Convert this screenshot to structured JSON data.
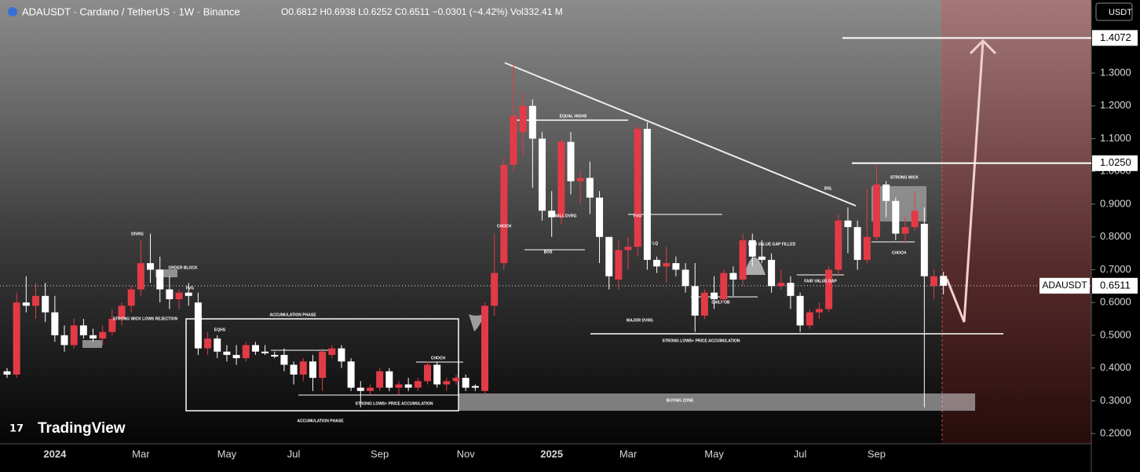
{
  "header": {
    "title": "ADAUSDT · Cardano / TetherUS · 1W · Binance",
    "ohlc": "O0.6812 H0.6938 L0.6252 C0.6511 −0.0301 (−4.42%) Vol332.41 M"
  },
  "branding": "TradingView",
  "chart_data": {
    "type": "candlestick",
    "categories": [
      null,
      null,
      null,
      null,
      null,
      "2024",
      null,
      null,
      null,
      null,
      null,
      null,
      null,
      null,
      "Mar",
      null,
      null,
      null,
      null,
      null,
      null,
      null,
      null,
      "May",
      null,
      null,
      null,
      null,
      null,
      null,
      "Jul",
      null,
      null,
      null,
      null,
      null,
      null,
      null,
      null,
      "Sep",
      null,
      null,
      null,
      null,
      null,
      null,
      null,
      null,
      "Nov",
      null,
      null,
      null,
      null,
      null,
      null,
      null,
      null,
      "2025",
      null,
      null,
      null,
      null,
      null,
      null,
      null,
      "Mar",
      null,
      null,
      null,
      null,
      null,
      null,
      null,
      null,
      "May",
      null,
      null,
      null,
      null,
      null,
      null,
      null,
      null,
      "Jul",
      null,
      null,
      null,
      null,
      null,
      null,
      null,
      "Sep",
      null,
      null,
      null,
      null,
      null,
      null,
      null
    ],
    "open": [
      0.39,
      0.38,
      0.6,
      0.59,
      0.62,
      0.57,
      0.5,
      0.47,
      0.53,
      0.5,
      0.49,
      0.51,
      0.55,
      0.59,
      0.64,
      0.72,
      0.7,
      0.64,
      0.61,
      0.63,
      0.6,
      0.46,
      0.49,
      0.45,
      0.44,
      0.43,
      0.47,
      0.45,
      0.44,
      0.44,
      0.41,
      0.38,
      0.42,
      0.37,
      0.44,
      0.46,
      0.42,
      0.34,
      0.33,
      0.34,
      0.39,
      0.34,
      0.35,
      0.34,
      0.36,
      0.41,
      0.35,
      0.36,
      0.37,
      0.345,
      0.33,
      0.59,
      0.72,
      1.02,
      1.12,
      1.2,
      1.1,
      0.88,
      0.86,
      1.09,
      0.97,
      0.98,
      0.92,
      0.8,
      0.67,
      0.76,
      0.77,
      1.13,
      0.73,
      0.71,
      0.72,
      0.7,
      0.65,
      0.56,
      0.63,
      0.61,
      0.69,
      0.67,
      0.79,
      0.74,
      0.73,
      0.65,
      0.66,
      0.62,
      0.53,
      0.57,
      0.58,
      0.7,
      0.85,
      0.83,
      0.73,
      0.8,
      0.96,
      0.91,
      0.81,
      0.83,
      0.84,
      0.65,
      0.6812
    ],
    "high": [
      0.4,
      0.63,
      0.68,
      0.66,
      0.66,
      0.62,
      0.53,
      0.55,
      0.55,
      0.52,
      0.53,
      0.58,
      0.6,
      0.65,
      0.79,
      0.81,
      0.74,
      0.68,
      0.64,
      0.66,
      0.63,
      0.51,
      0.5,
      0.47,
      0.47,
      0.48,
      0.48,
      0.47,
      0.45,
      0.46,
      0.42,
      0.43,
      0.44,
      0.46,
      0.47,
      0.47,
      0.43,
      0.36,
      0.35,
      0.4,
      0.4,
      0.36,
      0.37,
      0.37,
      0.42,
      0.42,
      0.37,
      0.38,
      0.38,
      0.35,
      0.6,
      0.81,
      1.04,
      1.33,
      1.24,
      1.22,
      1.12,
      0.94,
      1.1,
      1.12,
      1.0,
      1.03,
      0.94,
      0.8,
      0.79,
      0.8,
      1.14,
      1.15,
      0.74,
      0.77,
      0.74,
      0.72,
      0.72,
      0.64,
      0.68,
      0.7,
      0.71,
      0.81,
      0.81,
      0.79,
      0.75,
      0.7,
      0.68,
      0.63,
      0.58,
      0.6,
      0.71,
      0.87,
      0.89,
      0.85,
      0.95,
      1.02,
      0.97,
      0.92,
      0.86,
      0.94,
      0.89,
      0.7,
      0.6938
    ],
    "low": [
      0.37,
      0.37,
      0.57,
      0.55,
      0.54,
      0.48,
      0.45,
      0.46,
      0.49,
      0.48,
      0.47,
      0.5,
      0.53,
      0.57,
      0.62,
      0.66,
      0.6,
      0.58,
      0.58,
      0.59,
      0.44,
      0.44,
      0.43,
      0.42,
      0.41,
      0.42,
      0.44,
      0.44,
      0.43,
      0.39,
      0.35,
      0.36,
      0.33,
      0.33,
      0.43,
      0.4,
      0.33,
      0.28,
      0.32,
      0.33,
      0.33,
      0.32,
      0.33,
      0.33,
      0.35,
      0.34,
      0.33,
      0.35,
      0.33,
      0.33,
      0.32,
      0.56,
      0.7,
      1.0,
      1.05,
      0.95,
      0.85,
      0.8,
      0.84,
      0.93,
      0.9,
      0.87,
      0.72,
      0.64,
      0.64,
      0.7,
      0.74,
      0.7,
      0.69,
      0.66,
      0.68,
      0.63,
      0.51,
      0.55,
      0.58,
      0.6,
      0.62,
      0.65,
      0.71,
      0.72,
      0.63,
      0.64,
      0.58,
      0.51,
      0.52,
      0.55,
      0.57,
      0.68,
      0.75,
      0.7,
      0.72,
      0.79,
      0.86,
      0.79,
      0.78,
      0.82,
      0.28,
      0.61,
      0.6252
    ],
    "close": [
      0.38,
      0.6,
      0.59,
      0.62,
      0.57,
      0.5,
      0.47,
      0.53,
      0.5,
      0.49,
      0.51,
      0.55,
      0.59,
      0.64,
      0.72,
      0.7,
      0.64,
      0.61,
      0.63,
      0.62,
      0.46,
      0.49,
      0.45,
      0.44,
      0.43,
      0.47,
      0.45,
      0.445,
      0.435,
      0.41,
      0.38,
      0.42,
      0.37,
      0.45,
      0.46,
      0.42,
      0.34,
      0.33,
      0.34,
      0.39,
      0.34,
      0.35,
      0.34,
      0.36,
      0.41,
      0.35,
      0.36,
      0.37,
      0.34,
      0.34,
      0.59,
      0.69,
      1.02,
      1.17,
      1.2,
      1.1,
      0.88,
      0.86,
      1.09,
      0.97,
      0.98,
      0.92,
      0.8,
      0.68,
      0.76,
      0.77,
      1.13,
      0.73,
      0.71,
      0.72,
      0.7,
      0.65,
      0.56,
      0.63,
      0.61,
      0.69,
      0.67,
      0.79,
      0.74,
      0.73,
      0.65,
      0.66,
      0.62,
      0.53,
      0.57,
      0.58,
      0.7,
      0.85,
      0.83,
      0.73,
      0.8,
      0.96,
      0.91,
      0.81,
      0.83,
      0.88,
      0.68,
      0.68,
      0.6511
    ],
    "up_color": "#e23b47",
    "down_color": "#ffffff",
    "ylim": [
      0.169,
      1.523
    ],
    "yticks": [
      {
        "value": 0.2,
        "label": "0.2000"
      },
      {
        "value": 0.3,
        "label": "0.3000"
      },
      {
        "value": 0.4,
        "label": "0.4000"
      },
      {
        "value": 0.5,
        "label": "0.5000"
      },
      {
        "value": 0.6,
        "label": "0.6000"
      },
      {
        "value": 0.7,
        "label": "0.7000"
      },
      {
        "value": 0.8,
        "label": "0.8000"
      },
      {
        "value": 0.9,
        "label": "0.9000"
      },
      {
        "value": 1.0,
        "label": "1.0000"
      },
      {
        "value": 1.1,
        "label": "1.1000"
      },
      {
        "value": 1.2,
        "label": "1.2000"
      },
      {
        "value": 1.3,
        "label": "1.3000"
      }
    ],
    "y_axis_label": "USDT",
    "last_price_name": "ADAUSDT",
    "price_levels": [
      1.4072,
      {
        "value": 1.025,
        "label": "1.0250"
      }
    ],
    "annotations": [
      "EQUAL HIGHS",
      "SMALL DVRG",
      "CHOCH",
      "BOS",
      "FVG",
      "INT LQ",
      "MAJOR DVRG",
      "DAILY OB",
      "STRONG LOWS+ PRICE ACCUMULATION",
      "FAIR VALUE GAP FILLED",
      "FAIR VALUE GAP",
      "BSL",
      "STRONG WICK",
      "CHOCH",
      "ACCUMULATION PHASE",
      "ACCUMULATION PHASE",
      "CHOCH",
      "BUYING ZONE",
      "ORDER BLOCK",
      "DIVRG",
      "STRONG WICK LOWS REJECTION",
      "STRONG LOWS+ PRICE ACCUMULATION",
      "FVG",
      "EQHS"
    ]
  }
}
